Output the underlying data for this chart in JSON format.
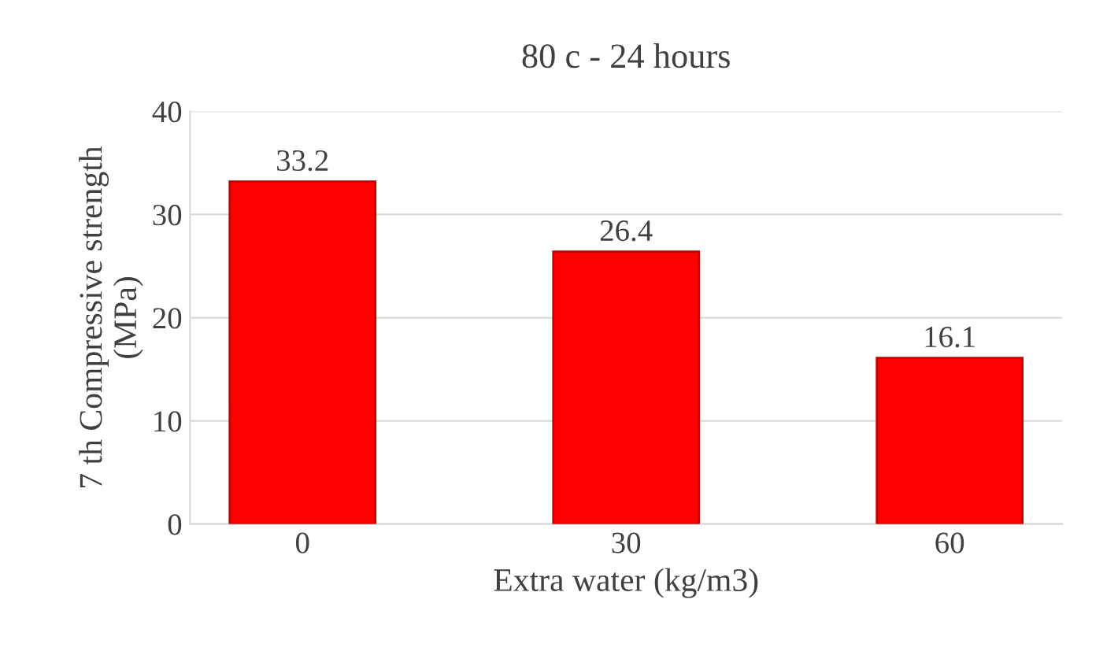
{
  "chart_data": {
    "type": "bar",
    "title": "80 c - 24 hours",
    "xlabel": "Extra water (kg/m3)",
    "ylabel": "7 th Compressive strength\n(MPa)",
    "categories": [
      "0",
      "30",
      "60"
    ],
    "values": [
      33.2,
      26.4,
      16.1
    ],
    "color": "#ff0000",
    "ylim": [
      0,
      40
    ],
    "yticks": [
      0,
      10,
      20,
      30,
      40
    ],
    "grid": "y",
    "data_labels": true
  }
}
